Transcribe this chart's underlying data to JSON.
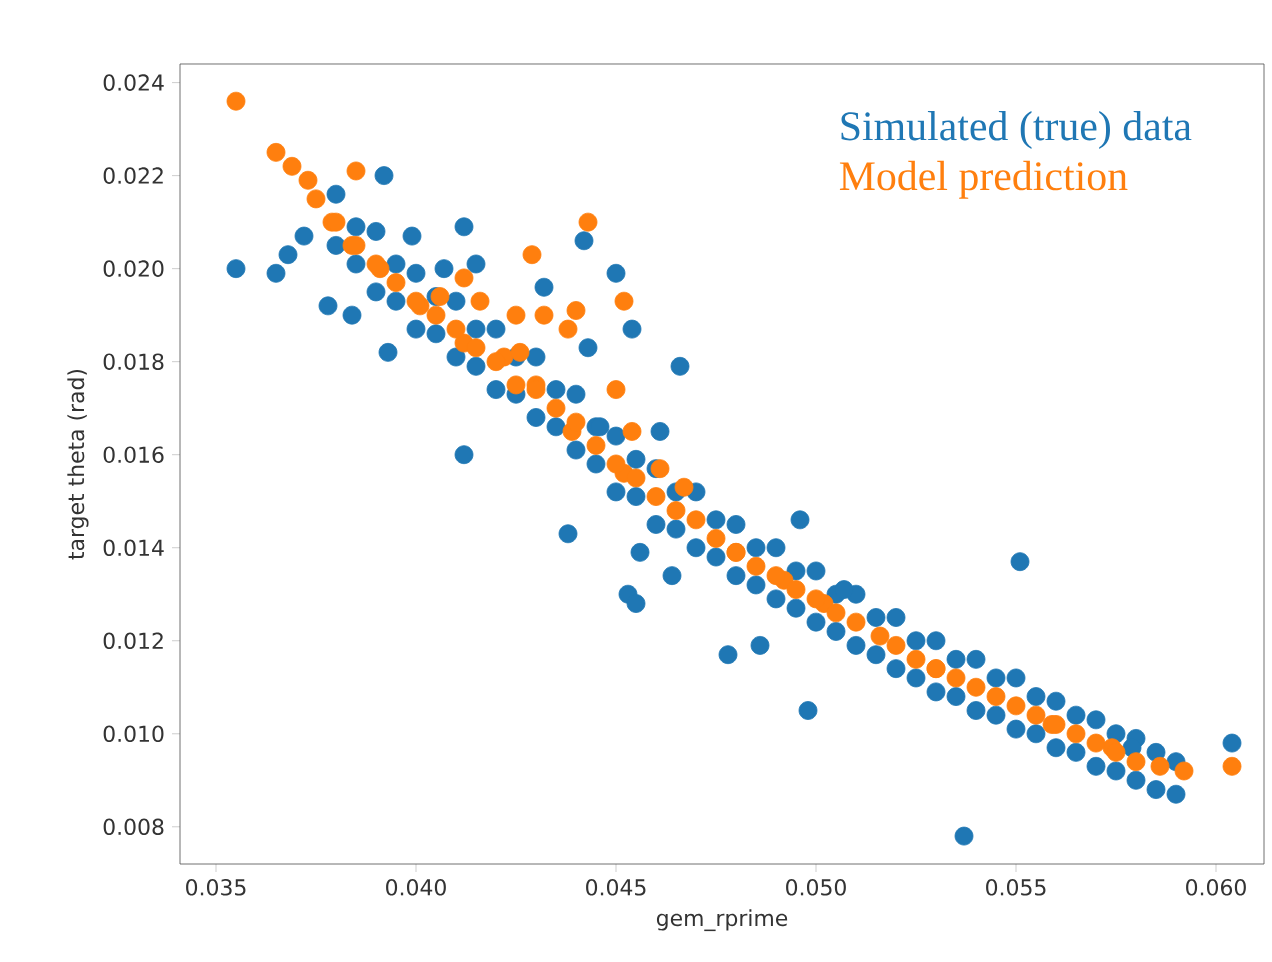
{
  "chart_data": {
    "type": "scatter",
    "xlabel": "gem_rprime",
    "ylabel": "target theta (rad)",
    "xlim": [
      0.0341,
      0.0612
    ],
    "ylim": [
      0.0072,
      0.0244
    ],
    "xticks": [
      0.035,
      {
        "value": 0.04,
        "label": "0.040"
      },
      0.045,
      {
        "value": 0.05,
        "label": "0.050"
      },
      0.055,
      {
        "value": 0.06,
        "label": "0.060"
      }
    ],
    "yticks": [
      0.008,
      {
        "value": 0.01,
        "label": "0.010"
      },
      0.012,
      0.014,
      0.016,
      0.018,
      {
        "value": 0.02,
        "label": "0.020"
      },
      0.022,
      0.024
    ],
    "grid": false,
    "legend": "top right",
    "marker": "circle",
    "series": [
      {
        "name": "Simulated (true) data",
        "color": "#1f77b4",
        "x": [
          0.038,
          0.039,
          0.04,
          0.041,
          0.042,
          0.043,
          0.044,
          0.045,
          0.046,
          0.047,
          0.048,
          0.049,
          0.05,
          0.051,
          0.052,
          0.053,
          0.054,
          0.055,
          0.056,
          0.057,
          0.058,
          0.059,
          0.038,
          0.039,
          0.04,
          0.041,
          0.042,
          0.043,
          0.044,
          0.045,
          0.046,
          0.047,
          0.048,
          0.049,
          0.05,
          0.051,
          0.052,
          0.053,
          0.054,
          0.055,
          0.056,
          0.057,
          0.058,
          0.059,
          0.0385,
          0.0395,
          0.0405,
          0.0415,
          0.0425,
          0.0435,
          0.0445,
          0.0455,
          0.0465,
          0.0475,
          0.0485,
          0.0495,
          0.0505,
          0.0515,
          0.0525,
          0.0535,
          0.0545,
          0.0555,
          0.0565,
          0.0575,
          0.0585,
          0.0385,
          0.0395,
          0.0405,
          0.0415,
          0.0425,
          0.0435,
          0.0445,
          0.0455,
          0.0465,
          0.0475,
          0.0485,
          0.0495,
          0.0505,
          0.0515,
          0.0525,
          0.0535,
          0.0545,
          0.0555,
          0.0565,
          0.0575,
          0.0585,
          0.0355,
          0.0365,
          0.0368,
          0.0372,
          0.0392,
          0.0378,
          0.0384,
          0.0393,
          0.0399,
          0.0412,
          0.0407,
          0.0415,
          0.0442,
          0.0432,
          0.045,
          0.0454,
          0.0466,
          0.0443,
          0.0446,
          0.0412,
          0.0461,
          0.0438,
          0.0456,
          0.0464,
          0.0453,
          0.0455,
          0.0496,
          0.0478,
          0.0486,
          0.0498,
          0.0507,
          0.0551,
          0.0537,
          0.0579,
          0.0604
        ],
        "values": [
          0.0216,
          0.0208,
          0.0199,
          0.0193,
          0.0187,
          0.0181,
          0.0173,
          0.0164,
          0.0157,
          0.0152,
          0.0145,
          0.014,
          0.0135,
          0.013,
          0.0125,
          0.012,
          0.0116,
          0.0112,
          0.0107,
          0.0103,
          0.0099,
          0.0094,
          0.0205,
          0.0195,
          0.0187,
          0.0181,
          0.0174,
          0.0168,
          0.0161,
          0.0152,
          0.0145,
          0.014,
          0.0134,
          0.0129,
          0.0124,
          0.0119,
          0.0114,
          0.0109,
          0.0105,
          0.0101,
          0.0097,
          0.0093,
          0.009,
          0.0087,
          0.0209,
          0.0201,
          0.0194,
          0.0187,
          0.0181,
          0.0174,
          0.0166,
          0.0159,
          0.0152,
          0.0146,
          0.014,
          0.0135,
          0.013,
          0.0125,
          0.012,
          0.0116,
          0.0112,
          0.0108,
          0.0104,
          0.01,
          0.0096,
          0.0201,
          0.0193,
          0.0186,
          0.0179,
          0.0173,
          0.0166,
          0.0158,
          0.0151,
          0.0144,
          0.0138,
          0.0132,
          0.0127,
          0.0122,
          0.0117,
          0.0112,
          0.0108,
          0.0104,
          0.01,
          0.0096,
          0.0092,
          0.0088,
          0.02,
          0.0199,
          0.0203,
          0.0207,
          0.022,
          0.0192,
          0.019,
          0.0182,
          0.0207,
          0.0209,
          0.02,
          0.0201,
          0.0206,
          0.0196,
          0.0199,
          0.0187,
          0.0179,
          0.0183,
          0.0166,
          0.016,
          0.0165,
          0.0143,
          0.0139,
          0.0134,
          0.013,
          0.0128,
          0.0146,
          0.0117,
          0.0119,
          0.0105,
          0.0131,
          0.0137,
          0.0078,
          0.0097,
          0.0098
        ]
      },
      {
        "name": "Model prediction",
        "color": "#ff7f0e",
        "x": [
          0.0355,
          0.0365,
          0.0369,
          0.0373,
          0.0375,
          0.0379,
          0.0384,
          0.0391,
          0.0401,
          0.0412,
          0.0425,
          0.0439,
          0.0452,
          0.0465,
          0.048,
          0.0492,
          0.0502,
          0.0516,
          0.053,
          0.0545,
          0.0559,
          0.0574,
          0.0586,
          0.0592,
          0.0604,
          0.0385,
          0.0406,
          0.0412,
          0.0416,
          0.0429,
          0.0425,
          0.0432,
          0.044,
          0.0438,
          0.0443,
          0.0452,
          0.045,
          0.0422,
          0.0426,
          0.043,
          0.0454,
          0.0461,
          0.0467,
          0.038,
          0.039,
          0.04,
          0.041,
          0.042,
          0.043,
          0.044,
          0.045,
          0.046,
          0.047,
          0.048,
          0.049,
          0.05,
          0.051,
          0.052,
          0.053,
          0.054,
          0.055,
          0.056,
          0.057,
          0.058,
          0.0385,
          0.0395,
          0.0405,
          0.0415,
          0.0435,
          0.0445,
          0.0455,
          0.0475,
          0.0485,
          0.0495,
          0.0505,
          0.0525,
          0.0535,
          0.0555,
          0.0565,
          0.0575
        ],
        "values": [
          0.0236,
          0.0225,
          0.0222,
          0.0219,
          0.0215,
          0.021,
          0.0205,
          0.02,
          0.0192,
          0.0184,
          0.0175,
          0.0165,
          0.0156,
          0.0148,
          0.0139,
          0.0133,
          0.0128,
          0.0121,
          0.0114,
          0.0108,
          0.0102,
          0.0097,
          0.0093,
          0.0092,
          0.0093,
          0.0221,
          0.0194,
          0.0198,
          0.0193,
          0.0203,
          0.019,
          0.019,
          0.0191,
          0.0187,
          0.021,
          0.0193,
          0.0174,
          0.0181,
          0.0182,
          0.0175,
          0.0165,
          0.0157,
          0.0153,
          0.021,
          0.0201,
          0.0193,
          0.0187,
          0.018,
          0.0174,
          0.0167,
          0.0158,
          0.0151,
          0.0146,
          0.0139,
          0.0134,
          0.0129,
          0.0124,
          0.0119,
          0.0114,
          0.011,
          0.0106,
          0.0102,
          0.0098,
          0.0094,
          0.0205,
          0.0197,
          0.019,
          0.0183,
          0.017,
          0.0162,
          0.0155,
          0.0142,
          0.0136,
          0.0131,
          0.0126,
          0.0116,
          0.0112,
          0.0104,
          0.01,
          0.0096
        ]
      }
    ]
  }
}
